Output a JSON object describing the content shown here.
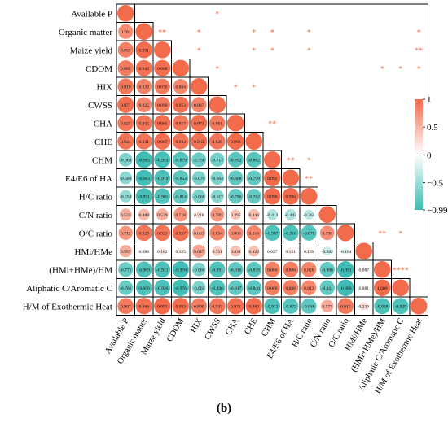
{
  "caption": "(b)",
  "chart_data": {
    "type": "heatmap",
    "style": "lower-triangle circles with values, significance stars in upper triangle",
    "variables": [
      "Available P",
      "Organic matter",
      "Maize yield",
      "CDOM",
      "HIX",
      "CWSS",
      "CHA",
      "CHE",
      "CHM",
      "E4/E6 of HA",
      "H/C ratio",
      "C/N ratio",
      "O/C ratio",
      "HMi/HMe",
      "(HMi+HMe)/HM",
      "Aliphatic C/Aromatic C",
      "H/M of Exothermic Heat"
    ],
    "values": [
      [
        1
      ],
      [
        0.781,
        1
      ],
      [
        0.857,
        0.991,
        1
      ],
      [
        0.885,
        0.942,
        0.968,
        1
      ],
      [
        0.919,
        0.832,
        0.876,
        0.804,
        1
      ],
      [
        0.971,
        0.825,
        0.89,
        0.953,
        0.837,
        1
      ],
      [
        0.927,
        0.935,
        0.965,
        0.917,
        0.971,
        0.901,
        1
      ],
      [
        0.944,
        0.931,
        0.967,
        0.934,
        0.963,
        0.926,
        0.998,
        1
      ],
      [
        -0.663,
        -0.985,
        -0.953,
        -0.879,
        -0.756,
        -0.717,
        -0.852,
        -0.862,
        1
      ],
      [
        -0.586,
        -0.963,
        -0.919,
        -0.853,
        -0.67,
        -0.664,
        -0.808,
        -0.799,
        0.992,
        1
      ],
      [
        -0.55,
        -0.951,
        -0.901,
        -0.814,
        -0.668,
        -0.617,
        -0.796,
        -0.782,
        0.99,
        0.996,
        1
      ],
      [
        0.533,
        0.488,
        0.529,
        0.718,
        0.218,
        0.709,
        0.395,
        0.446,
        -0.413,
        -0.442,
        -0.363,
        1
      ],
      [
        0.712,
        0.929,
        0.923,
        0.957,
        0.633,
        0.834,
        0.8,
        0.816,
        -0.907,
        -0.916,
        -0.878,
        0.758,
        1
      ],
      [
        0.557,
        0.088,
        0.182,
        0.125,
        0.627,
        0.351,
        0.431,
        0.422,
        0.027,
        0.151,
        0.139,
        -0.282,
        -0.164,
        1
      ],
      [
        -0.775,
        -0.909,
        -0.921,
        -0.976,
        -0.66,
        -0.891,
        -0.816,
        -0.839,
        0.86,
        0.866,
        0.82,
        -0.806,
        -0.991,
        0.087,
        1
      ],
      [
        -0.781,
        -0.906,
        -0.92,
        -0.976,
        -0.662,
        -0.896,
        -0.817,
        -0.84,
        0.86,
        0.866,
        0.813,
        -0.811,
        -0.989,
        0.081,
        1.0,
        1
      ],
      [
        0.907,
        0.969,
        0.993,
        0.983,
        0.89,
        0.937,
        0.972,
        0.98,
        -0.912,
        -0.872,
        -0.846,
        0.577,
        0.915,
        0.239,
        -0.928,
        -0.929,
        1
      ]
    ],
    "significance": [
      {
        "row": 0,
        "col": 5,
        "stars": "*"
      },
      {
        "row": 1,
        "col": 2,
        "stars": "**"
      },
      {
        "row": 1,
        "col": 4,
        "stars": "*"
      },
      {
        "row": 1,
        "col": 7,
        "stars": "*"
      },
      {
        "row": 1,
        "col": 8,
        "stars": "*"
      },
      {
        "row": 1,
        "col": 10,
        "stars": "*"
      },
      {
        "row": 1,
        "col": 16,
        "stars": "*"
      },
      {
        "row": 2,
        "col": 4,
        "stars": "*"
      },
      {
        "row": 2,
        "col": 7,
        "stars": "*"
      },
      {
        "row": 2,
        "col": 8,
        "stars": "*"
      },
      {
        "row": 2,
        "col": 10,
        "stars": "*"
      },
      {
        "row": 2,
        "col": 16,
        "stars": "**"
      },
      {
        "row": 3,
        "col": 5,
        "stars": "*"
      },
      {
        "row": 3,
        "col": 14,
        "stars": "*"
      },
      {
        "row": 3,
        "col": 15,
        "stars": "*"
      },
      {
        "row": 3,
        "col": 16,
        "stars": "*"
      },
      {
        "row": 4,
        "col": 6,
        "stars": "*"
      },
      {
        "row": 4,
        "col": 7,
        "stars": "*"
      },
      {
        "row": 6,
        "col": 8,
        "stars": "**"
      },
      {
        "row": 7,
        "col": 16,
        "stars": "*"
      },
      {
        "row": 8,
        "col": 9,
        "stars": "**"
      },
      {
        "row": 8,
        "col": 10,
        "stars": "*"
      },
      {
        "row": 9,
        "col": 10,
        "stars": "**"
      },
      {
        "row": 12,
        "col": 14,
        "stars": "**"
      },
      {
        "row": 12,
        "col": 15,
        "stars": "*"
      },
      {
        "row": 14,
        "col": 15,
        "stars": "****"
      }
    ],
    "colorbar": {
      "range": [
        -0.99,
        1
      ],
      "ticks": [
        1,
        0.5,
        0,
        -0.5,
        -0.99
      ],
      "tick_labels": [
        "1",
        "0.5",
        "0",
        "−0.5",
        "−0.99"
      ],
      "colors": {
        "positive": "#f26b4b",
        "zero": "#ffffff",
        "negative": "#3dbcb3"
      }
    }
  }
}
